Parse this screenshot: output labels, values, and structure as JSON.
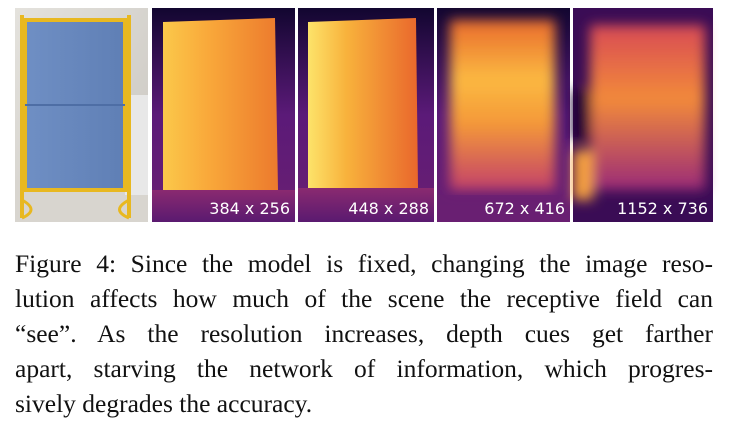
{
  "figure": {
    "depth_maps": [
      {
        "resolution": "384 x 256"
      },
      {
        "resolution": "448 x 288"
      },
      {
        "resolution": "672 x 416"
      },
      {
        "resolution": "1152 x 736"
      }
    ],
    "caption": {
      "lines": [
        "Figure 4: Since the model is fixed, changing the image reso-",
        "lution affects how much of the scene the receptive field can",
        "“see”.  As the resolution increases, depth cues get farther",
        "apart, starving the network of information, which progres-",
        "sively degrades the accuracy."
      ]
    }
  }
}
